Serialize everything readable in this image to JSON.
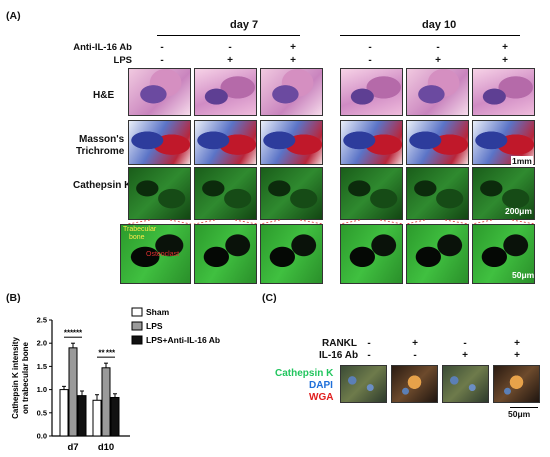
{
  "panel_a": {
    "label": "(A)",
    "groups": [
      "day 7",
      "day 10"
    ],
    "row_labels": {
      "ab": "Anti-IL-16 Ab",
      "lps": "LPS",
      "he": "H&E",
      "masson1": "Masson's",
      "masson2": "Trichrome",
      "cathepsin": "Cathepsin K"
    },
    "ab_signs": [
      "-",
      "-",
      "+",
      "-",
      "-",
      "+"
    ],
    "lps_signs": [
      "-",
      "+",
      "+",
      "-",
      "+",
      "+"
    ],
    "annotations": {
      "trabecular1": "Trabecular",
      "trabecular2": "bone",
      "osteoclast": "Osteoclast"
    },
    "scale_bars": [
      "1mm",
      "200μm",
      "50μm"
    ]
  },
  "panel_b": {
    "label": "(B)",
    "sig": [
      "***",
      "***",
      "**",
      "***"
    ]
  },
  "panel_c": {
    "label": "(C)",
    "row_labels": {
      "rankl": "RANKL",
      "il16": "IL-16 Ab"
    },
    "rankl_signs": [
      "-",
      "+",
      "-",
      "+"
    ],
    "il16_signs": [
      "-",
      "-",
      "+",
      "+"
    ],
    "stain_labels": {
      "cathepsin": "Cathepsin K",
      "dapi": "DAPI",
      "wga": "WGA"
    },
    "stain_colors": {
      "cathepsin": "#22c55e",
      "dapi": "#1e6fd9",
      "wga": "#e11d1d"
    },
    "scale_bar": "50μm"
  },
  "chart_data": {
    "type": "bar",
    "categories": [
      "d7",
      "d10"
    ],
    "ylabel": "Cathepsin K intensity on trabecular bone",
    "ylim": [
      0,
      2.5
    ],
    "yticks": [
      "0.0",
      "0.5",
      "1.0",
      "1.5",
      "2.0",
      "2.5"
    ],
    "series": [
      {
        "name": "Sham",
        "color": "#ffffff",
        "values": [
          1.0,
          0.77
        ],
        "errors": [
          0.07,
          0.12
        ]
      },
      {
        "name": "LPS",
        "color": "#9a9a9a",
        "values": [
          1.9,
          1.47
        ],
        "errors": [
          0.1,
          0.1
        ]
      },
      {
        "name": "LPS+Anti-IL-16 Ab",
        "color": "#111111",
        "values": [
          0.87,
          0.83
        ],
        "errors": [
          0.1,
          0.08
        ]
      }
    ]
  }
}
